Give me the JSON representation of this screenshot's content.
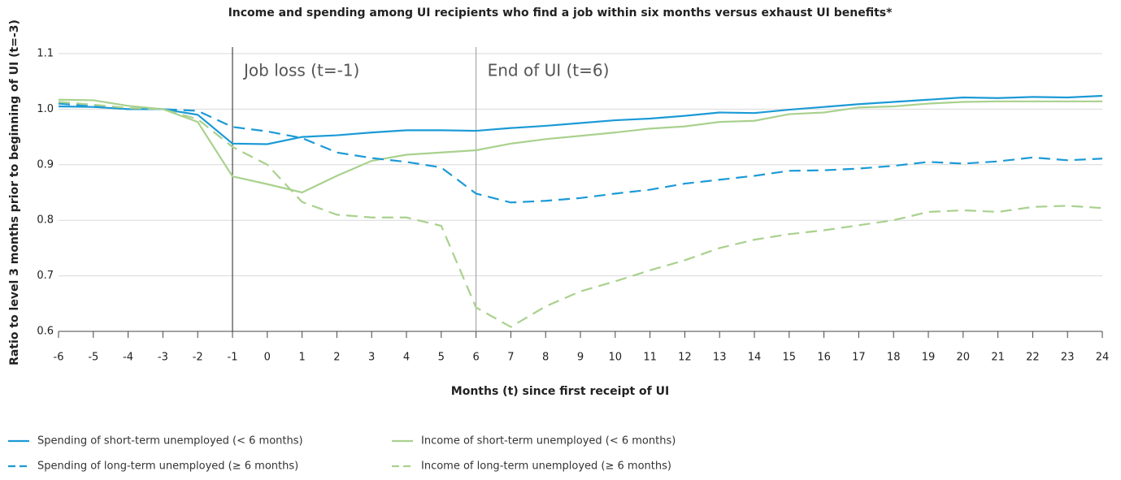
{
  "chart_data": {
    "type": "line",
    "title": "Income and spending among UI recipients who find a job within six months versus exhaust UI benefits*",
    "xlabel": "Months (t) since first receipt of UI",
    "ylabel": "Ratio to level 3 months prior to beginning of UI (t=-3)",
    "x": [
      -6,
      -5,
      -4,
      -3,
      -2,
      -1,
      0,
      1,
      2,
      3,
      4,
      5,
      6,
      7,
      8,
      9,
      10,
      11,
      12,
      13,
      14,
      15,
      16,
      17,
      18,
      19,
      20,
      21,
      22,
      23,
      24
    ],
    "xlim": [
      -6,
      24
    ],
    "xticks": [
      -6,
      -5,
      -4,
      -3,
      -2,
      -1,
      0,
      1,
      2,
      3,
      4,
      5,
      6,
      7,
      8,
      9,
      10,
      11,
      12,
      13,
      14,
      15,
      16,
      17,
      18,
      19,
      20,
      21,
      22,
      23,
      24
    ],
    "ylim": [
      0.6,
      1.1
    ],
    "yticks": [
      0.6,
      0.7,
      0.8,
      0.9,
      {
        "value": 1,
        "label": "1.0"
      },
      1.1
    ],
    "grid": true,
    "annotations": [
      {
        "text": "Job loss (t=-1)",
        "x": -1,
        "color": "#222222"
      },
      {
        "text": "End of UI (t=6)",
        "x": 6,
        "color": "#999999"
      }
    ],
    "series": [
      {
        "name": "Spending of short-term unemployed (< 6 months)",
        "color": "#1b9ad6",
        "dash": false,
        "values": [
          1.005,
          1.004,
          1.0,
          1.0,
          0.99,
          0.938,
          0.937,
          0.95,
          0.953,
          0.958,
          0.962,
          0.962,
          0.961,
          0.966,
          0.97,
          0.975,
          0.98,
          0.983,
          0.988,
          0.994,
          0.993,
          0.999,
          1.004,
          1.009,
          1.013,
          1.017,
          1.021,
          1.02,
          1.022,
          1.021,
          1.024
        ]
      },
      {
        "name": "Income of short-term unemployed (< 6 months)",
        "color": "#a9d18e",
        "dash": false,
        "values": [
          1.017,
          1.016,
          1.006,
          1.0,
          0.977,
          0.879,
          0.865,
          0.85,
          0.88,
          0.907,
          0.918,
          0.922,
          0.926,
          0.938,
          0.946,
          0.952,
          0.958,
          0.965,
          0.969,
          0.977,
          0.979,
          0.991,
          0.994,
          1.003,
          1.005,
          1.01,
          1.013,
          1.014,
          1.014,
          1.014,
          1.014
        ]
      },
      {
        "name": "Spending of long-term unemployed (≥ 6 months)",
        "color": "#1b9ad6",
        "dash": true,
        "values": [
          1.01,
          1.005,
          1.0,
          1.0,
          0.997,
          0.968,
          0.96,
          0.948,
          0.922,
          0.912,
          0.905,
          0.895,
          0.848,
          0.832,
          0.835,
          0.84,
          0.848,
          0.855,
          0.866,
          0.873,
          0.88,
          0.889,
          0.89,
          0.893,
          0.898,
          0.905,
          0.902,
          0.906,
          0.913,
          0.908,
          0.911
        ]
      },
      {
        "name": "Income of long-term unemployed (≥ 6 months)",
        "color": "#a9d18e",
        "dash": true,
        "values": [
          1.013,
          1.008,
          1.002,
          1.0,
          0.982,
          0.932,
          0.9,
          0.833,
          0.81,
          0.805,
          0.805,
          0.79,
          0.643,
          0.608,
          0.645,
          0.672,
          0.69,
          0.71,
          0.728,
          0.75,
          0.765,
          0.775,
          0.782,
          0.791,
          0.8,
          0.815,
          0.818,
          0.815,
          0.824,
          0.826,
          0.822
        ]
      }
    ]
  }
}
